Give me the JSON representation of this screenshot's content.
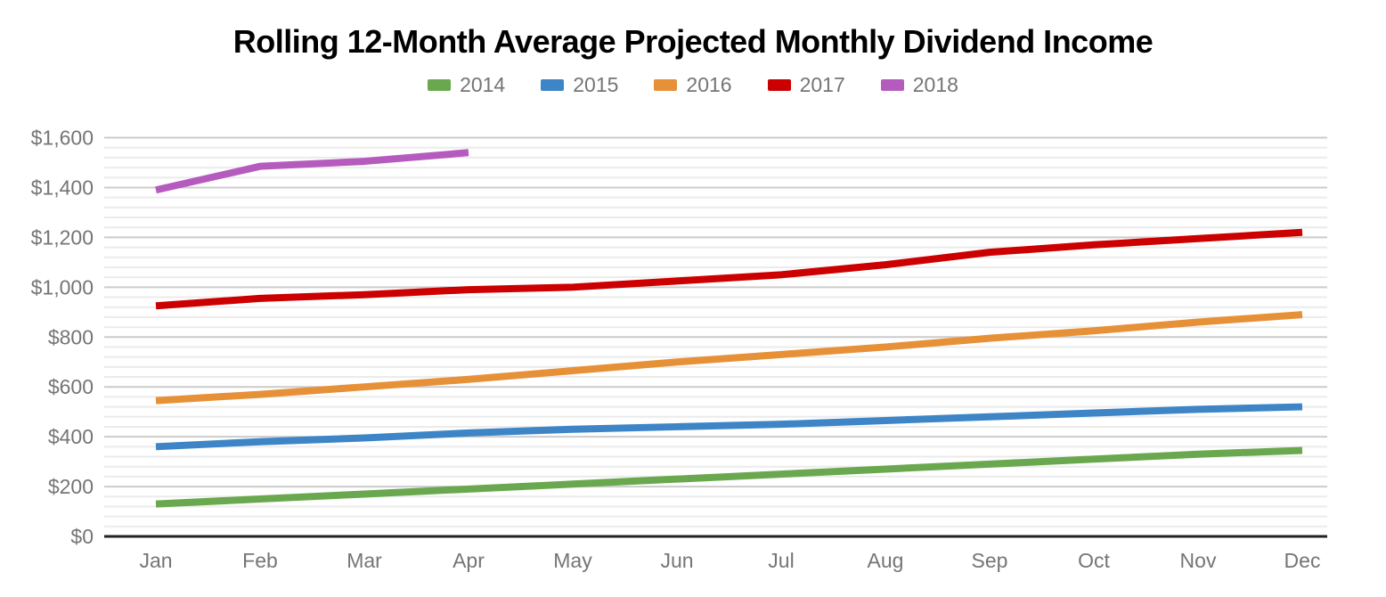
{
  "chart_data": {
    "type": "line",
    "title": "Rolling 12-Month Average Projected Monthly Dividend Income",
    "categories": [
      "Jan",
      "Feb",
      "Mar",
      "Apr",
      "May",
      "Jun",
      "Jul",
      "Aug",
      "Sep",
      "Oct",
      "Nov",
      "Dec"
    ],
    "series": [
      {
        "name": "2014",
        "color": "#6aa84f",
        "values": [
          130,
          150,
          170,
          190,
          210,
          230,
          250,
          270,
          290,
          310,
          330,
          345
        ]
      },
      {
        "name": "2015",
        "color": "#3d85c6",
        "values": [
          360,
          380,
          395,
          415,
          430,
          440,
          450,
          465,
          480,
          495,
          510,
          520
        ]
      },
      {
        "name": "2016",
        "color": "#e69138",
        "values": [
          545,
          570,
          600,
          630,
          665,
          700,
          730,
          760,
          795,
          825,
          860,
          890
        ]
      },
      {
        "name": "2017",
        "color": "#cc0000",
        "values": [
          925,
          955,
          970,
          990,
          1000,
          1025,
          1050,
          1090,
          1140,
          1170,
          1195,
          1220
        ]
      },
      {
        "name": "2018",
        "color": "#b65bbe",
        "values": [
          1390,
          1485,
          1505,
          1540,
          null,
          null,
          null,
          null,
          null,
          null,
          null,
          null
        ]
      }
    ],
    "yticks": [
      "$0",
      "$200",
      "$400",
      "$600",
      "$800",
      "$1,000",
      "$1,200",
      "$1,400",
      "$1,600"
    ],
    "ylim": [
      0,
      1600
    ],
    "ytick_major": 200,
    "ytick_minor": 40,
    "legend_position": "top",
    "grid": "major-and-minor",
    "colors": {
      "axis_text": "#757575",
      "grid_major": "#cccccc",
      "grid_minor": "#ebebeb",
      "baseline": "#212121",
      "title": "#000000"
    }
  }
}
